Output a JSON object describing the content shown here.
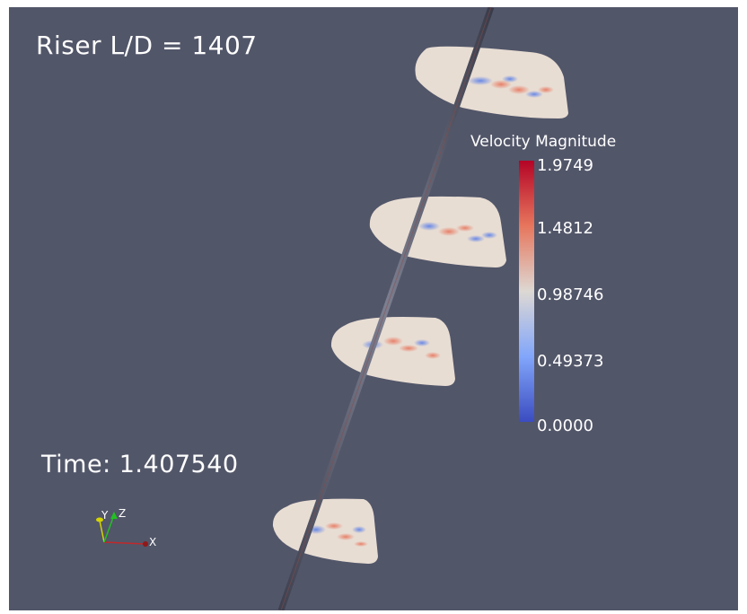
{
  "overlay": {
    "title": "Riser L/D = 1407",
    "time": "Time: 1.407540"
  },
  "colorbar": {
    "title": "Velocity Magnitude",
    "ticks": [
      "1.9749",
      "1.4812",
      "0.98746",
      "0.49373",
      "0.0000"
    ],
    "colormap": "cool-to-warm",
    "range": [
      0.0,
      1.9749
    ]
  },
  "axes_widget": {
    "labels": {
      "x": "X",
      "y": "Y",
      "z": "Z"
    },
    "colors": {
      "x": "#c0282a",
      "y": "#d4d400",
      "z": "#22c022"
    }
  },
  "scene": {
    "background": "#525669",
    "riser_color": "#5b5e6e",
    "slice_count": 4
  }
}
